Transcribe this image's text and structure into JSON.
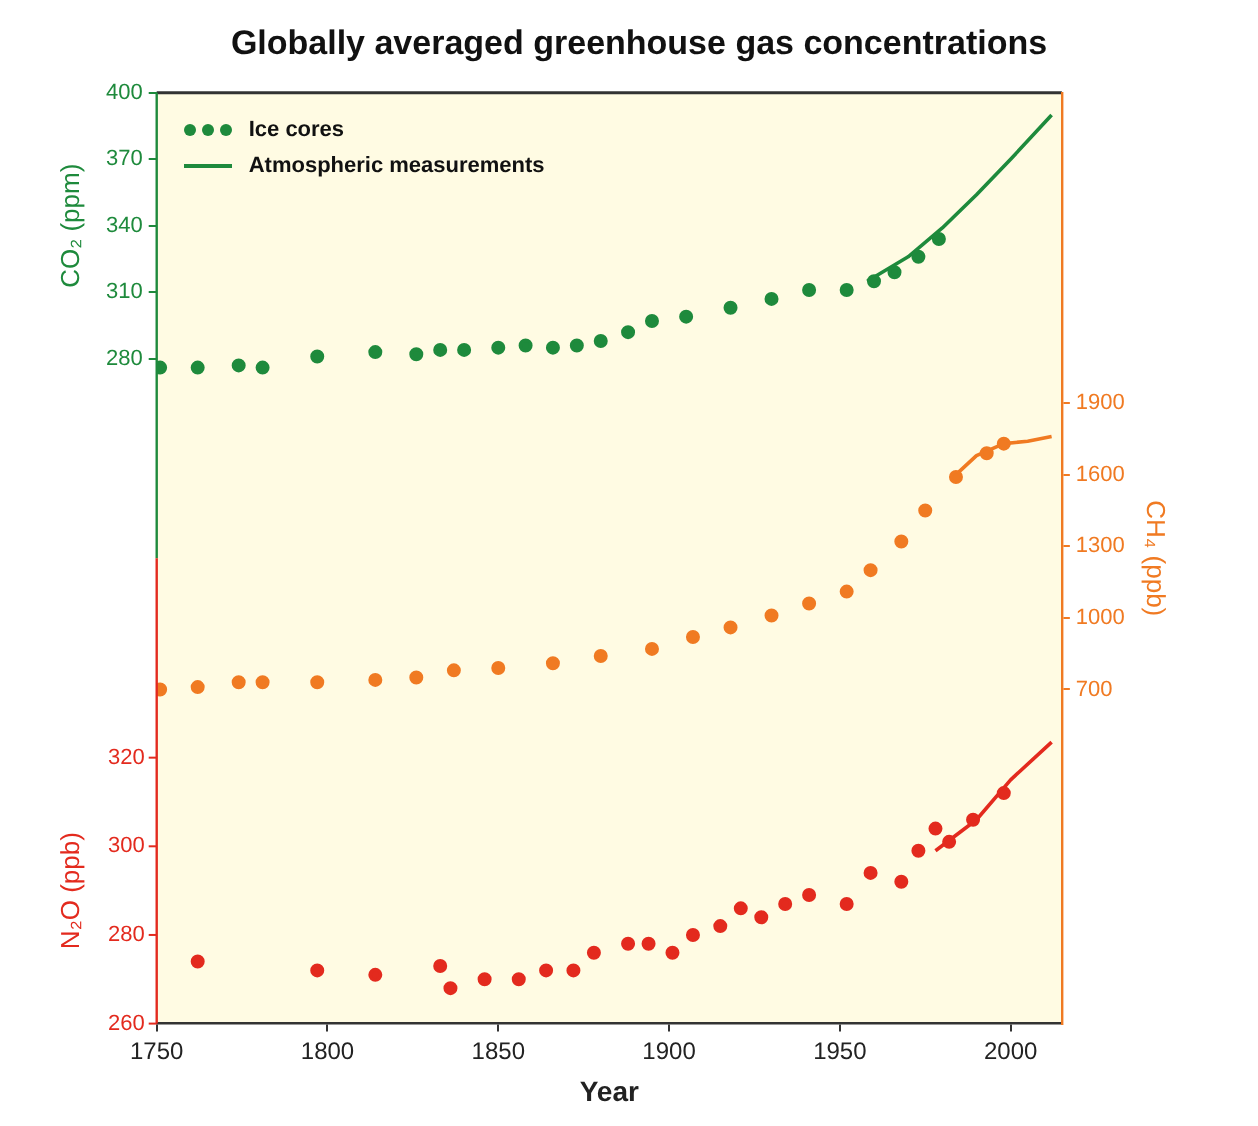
{
  "chart_data": {
    "type": "scatter",
    "title": "Globally averaged greenhouse gas concentrations",
    "xlabel": "Year",
    "ylabel": "CO₂ (ppm)",
    "y2label": "CH₄ (ppb)",
    "y3label": "N₂O (ppb)",
    "xlim": [
      1750,
      2015
    ],
    "xticks": [
      1750,
      1800,
      1850,
      1900,
      1950,
      2000
    ],
    "ylim": [
      -20,
      400
    ],
    "yticks": [
      280,
      310,
      340,
      370,
      400
    ],
    "y2lim": [
      -700,
      3200
    ],
    "y2ticks": [
      700,
      1000,
      1300,
      1600,
      1900
    ],
    "y3lim": [
      260,
      470
    ],
    "y3ticks": [
      260,
      280,
      300,
      320
    ],
    "grid": false,
    "legend": "top left",
    "series": [
      {
        "name": "Ice cores",
        "marker": "circle",
        "axis": "y",
        "color": "#1e8a3c",
        "x": [
          1751,
          1762,
          1774,
          1781,
          1797,
          1814,
          1826,
          1833,
          1840,
          1850,
          1858,
          1866,
          1873,
          1880,
          1888,
          1895,
          1905,
          1918,
          1930,
          1941,
          1952,
          1960,
          1966,
          1973,
          1979
        ],
        "values": [
          276,
          276,
          277,
          276,
          281,
          283,
          282,
          284,
          284,
          285,
          286,
          285,
          286,
          288,
          292,
          297,
          299,
          303,
          307,
          311,
          311,
          315,
          319,
          326,
          334
        ]
      },
      {
        "name": "Atmospheric measurements",
        "type": "line",
        "marker": "none",
        "axis": "y",
        "color": "#1e8a3c",
        "x": [
          1958,
          1970,
          1980,
          1990,
          2000,
          2012
        ],
        "values": [
          315,
          326,
          339,
          354,
          370,
          390
        ]
      },
      {
        "marker": "circle",
        "axis": "y2",
        "color": "#f07a22",
        "x": [
          1751,
          1762,
          1774,
          1781,
          1797,
          1814,
          1826,
          1837,
          1850,
          1866,
          1880,
          1895,
          1907,
          1918,
          1930,
          1941,
          1952,
          1959,
          1968,
          1975,
          1984,
          1993,
          1998
        ],
        "values": [
          700,
          710,
          730,
          730,
          730,
          740,
          750,
          780,
          790,
          810,
          840,
          870,
          920,
          960,
          1010,
          1060,
          1110,
          1200,
          1320,
          1450,
          1590,
          1690,
          1730
        ]
      },
      {
        "type": "line",
        "marker": "none",
        "axis": "y2",
        "color": "#f07a22",
        "x": [
          1984,
          1990,
          1998,
          2005,
          2012
        ],
        "values": [
          1600,
          1680,
          1730,
          1740,
          1760
        ]
      },
      {
        "marker": "circle",
        "axis": "y3",
        "color": "#e32a1e",
        "x": [
          1762,
          1797,
          1814,
          1833,
          1836,
          1846,
          1856,
          1864,
          1872,
          1878,
          1888,
          1894,
          1901,
          1907,
          1915,
          1921,
          1927,
          1934,
          1941,
          1952,
          1959,
          1968,
          1973,
          1978,
          1982,
          1989,
          1998
        ],
        "values": [
          274,
          272,
          271,
          273,
          268,
          270,
          270,
          272,
          272,
          276,
          278,
          278,
          276,
          280,
          282,
          286,
          284,
          287,
          289,
          287,
          294,
          292,
          299,
          304,
          301,
          306,
          312
        ]
      },
      {
        "type": "line",
        "marker": "none",
        "axis": "y3",
        "color": "#e32a1e",
        "x": [
          1978,
          1990,
          2000,
          2012
        ],
        "values": [
          299,
          306,
          315,
          323.5
        ]
      }
    ]
  }
}
